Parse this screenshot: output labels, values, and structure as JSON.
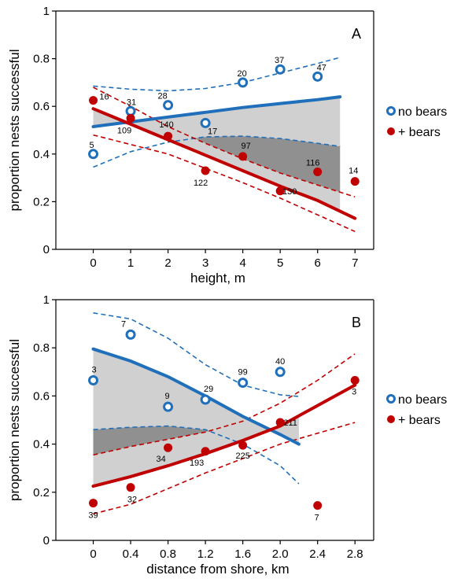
{
  "chart_data": [
    {
      "type": "scatter",
      "panel_label": "A",
      "xlabel": "height, m",
      "ylabel": "proportion nests successful",
      "xlim": [
        -1,
        7.5
      ],
      "ylim": [
        0,
        1
      ],
      "xticks": [
        "0",
        "1",
        "2",
        "3",
        "4",
        "5",
        "6",
        "7"
      ],
      "xtick_values": [
        0,
        1,
        2,
        3,
        4,
        5,
        6,
        7
      ],
      "yticks": [
        "0",
        "0.2",
        "0.4",
        "0.6",
        "0.8",
        "1"
      ],
      "ytick_values": [
        0,
        0.2,
        0.4,
        0.6,
        0.8,
        1
      ],
      "legend": [
        "no bears",
        "+ bears"
      ],
      "legend_position": "right",
      "colors": {
        "no_bears": "#1f6fba",
        "bears": "#c00000",
        "band_light": "#d0d0d0",
        "band_dark": "#909090"
      },
      "series": [
        {
          "name": "no bears",
          "marker": "open-circle",
          "points": [
            {
              "x": 0,
              "y": 0.4,
              "n": "5"
            },
            {
              "x": 1,
              "y": 0.58,
              "n": "31"
            },
            {
              "x": 2,
              "y": 0.605,
              "n": "28"
            },
            {
              "x": 3,
              "y": 0.53,
              "n": "17"
            },
            {
              "x": 4,
              "y": 0.7,
              "n": "20"
            },
            {
              "x": 5,
              "y": 0.755,
              "n": "37"
            },
            {
              "x": 6,
              "y": 0.725,
              "n": "47"
            }
          ],
          "fit": {
            "x": [
              0,
              1,
              2,
              3,
              4,
              5,
              6,
              6.6
            ],
            "y": [
              0.515,
              0.535,
              0.555,
              0.575,
              0.595,
              0.612,
              0.628,
              0.64
            ]
          },
          "ci_upper": {
            "x": [
              0,
              1,
              2,
              3,
              4,
              5,
              6,
              6.6
            ],
            "y": [
              0.685,
              0.672,
              0.665,
              0.675,
              0.7,
              0.74,
              0.78,
              0.805
            ]
          },
          "ci_lower": {
            "x": [
              0,
              1,
              2,
              3,
              4,
              5,
              6,
              6.6
            ],
            "y": [
              0.345,
              0.41,
              0.45,
              0.472,
              0.475,
              0.465,
              0.445,
              0.432
            ]
          }
        },
        {
          "name": "+ bears",
          "marker": "filled-circle",
          "points": [
            {
              "x": 0,
              "y": 0.625,
              "n": "16"
            },
            {
              "x": 1,
              "y": 0.55,
              "n": "109"
            },
            {
              "x": 2,
              "y": 0.475,
              "n": "140"
            },
            {
              "x": 3,
              "y": 0.33,
              "n": "122"
            },
            {
              "x": 4,
              "y": 0.39,
              "n": "97"
            },
            {
              "x": 5,
              "y": 0.245,
              "n": "130"
            },
            {
              "x": 6,
              "y": 0.325,
              "n": "116"
            },
            {
              "x": 7,
              "y": 0.285,
              "n": "14"
            }
          ],
          "fit": {
            "x": [
              0,
              1,
              2,
              3,
              4,
              5,
              6,
              7
            ],
            "y": [
              0.59,
              0.525,
              0.46,
              0.395,
              0.33,
              0.265,
              0.205,
              0.13
            ]
          },
          "ci_upper": {
            "x": [
              0,
              1,
              2,
              3,
              4,
              5,
              6,
              7
            ],
            "y": [
              0.68,
              0.6,
              0.515,
              0.445,
              0.38,
              0.32,
              0.27,
              0.22
            ]
          },
          "ci_lower": {
            "x": [
              0,
              1,
              2,
              3,
              4,
              5,
              6,
              7
            ],
            "y": [
              0.48,
              0.44,
              0.4,
              0.34,
              0.28,
              0.215,
              0.145,
              0.075
            ]
          }
        }
      ]
    },
    {
      "type": "scatter",
      "panel_label": "B",
      "xlabel": "distance from shore, km",
      "ylabel": "proportion nests successful",
      "xlim": [
        -0.4,
        3.0
      ],
      "ylim": [
        0,
        1
      ],
      "xticks": [
        "0",
        "0.4",
        "0.8",
        "1.2",
        "1.6",
        "2.0",
        "2.4",
        "2.8"
      ],
      "xtick_values": [
        0,
        0.4,
        0.8,
        1.2,
        1.6,
        2.0,
        2.4,
        2.8
      ],
      "yticks": [
        "0",
        "0.2",
        "0.4",
        "0.6",
        "0.8",
        "1"
      ],
      "ytick_values": [
        0,
        0.2,
        0.4,
        0.6,
        0.8,
        1
      ],
      "legend": [
        "no bears",
        "+ bears"
      ],
      "legend_position": "right",
      "colors": {
        "no_bears": "#1f6fba",
        "bears": "#c00000",
        "band_light": "#d0d0d0",
        "band_dark": "#909090"
      },
      "series": [
        {
          "name": "no bears",
          "marker": "open-circle",
          "points": [
            {
              "x": 0,
              "y": 0.665,
              "n": "3"
            },
            {
              "x": 0.4,
              "y": 0.855,
              "n": "7"
            },
            {
              "x": 0.8,
              "y": 0.555,
              "n": "9"
            },
            {
              "x": 1.2,
              "y": 0.585,
              "n": "29"
            },
            {
              "x": 1.6,
              "y": 0.655,
              "n": "99"
            },
            {
              "x": 2.0,
              "y": 0.7,
              "n": "40"
            }
          ],
          "fit": {
            "x": [
              0,
              0.4,
              0.8,
              1.2,
              1.6,
              2.0,
              2.2
            ],
            "y": [
              0.795,
              0.745,
              0.68,
              0.6,
              0.515,
              0.44,
              0.4
            ]
          },
          "ci_upper": {
            "x": [
              0,
              0.4,
              0.8,
              1.2,
              1.6,
              2.0,
              2.2
            ],
            "y": [
              0.945,
              0.92,
              0.84,
              0.73,
              0.645,
              0.605,
              0.598
            ]
          },
          "ci_lower": {
            "x": [
              0,
              0.4,
              0.8,
              1.2,
              1.6,
              2.0,
              2.2
            ],
            "y": [
              0.46,
              0.47,
              0.475,
              0.46,
              0.4,
              0.31,
              0.235
            ]
          }
        },
        {
          "name": "+ bears",
          "marker": "filled-circle",
          "points": [
            {
              "x": 0,
              "y": 0.155,
              "n": "39"
            },
            {
              "x": 0.4,
              "y": 0.22,
              "n": "32"
            },
            {
              "x": 0.8,
              "y": 0.385,
              "n": "34"
            },
            {
              "x": 1.2,
              "y": 0.37,
              "n": "193"
            },
            {
              "x": 1.6,
              "y": 0.395,
              "n": "225"
            },
            {
              "x": 2.0,
              "y": 0.49,
              "n": "211"
            },
            {
              "x": 2.4,
              "y": 0.145,
              "n": "7"
            },
            {
              "x": 2.8,
              "y": 0.665,
              "n": "3"
            }
          ],
          "fit": {
            "x": [
              0,
              0.4,
              0.8,
              1.2,
              1.6,
              2.0,
              2.4,
              2.8
            ],
            "y": [
              0.225,
              0.265,
              0.31,
              0.36,
              0.415,
              0.475,
              0.56,
              0.645
            ]
          },
          "ci_upper": {
            "x": [
              0,
              0.4,
              0.8,
              1.2,
              1.6,
              2.0,
              2.4,
              2.8
            ],
            "y": [
              0.355,
              0.39,
              0.42,
              0.45,
              0.495,
              0.57,
              0.665,
              0.775
            ]
          },
          "ci_lower": {
            "x": [
              0,
              0.4,
              0.8,
              1.2,
              1.6,
              2.0,
              2.4,
              2.8
            ],
            "y": [
              0.11,
              0.15,
              0.215,
              0.28,
              0.34,
              0.4,
              0.445,
              0.49
            ]
          }
        }
      ]
    }
  ]
}
